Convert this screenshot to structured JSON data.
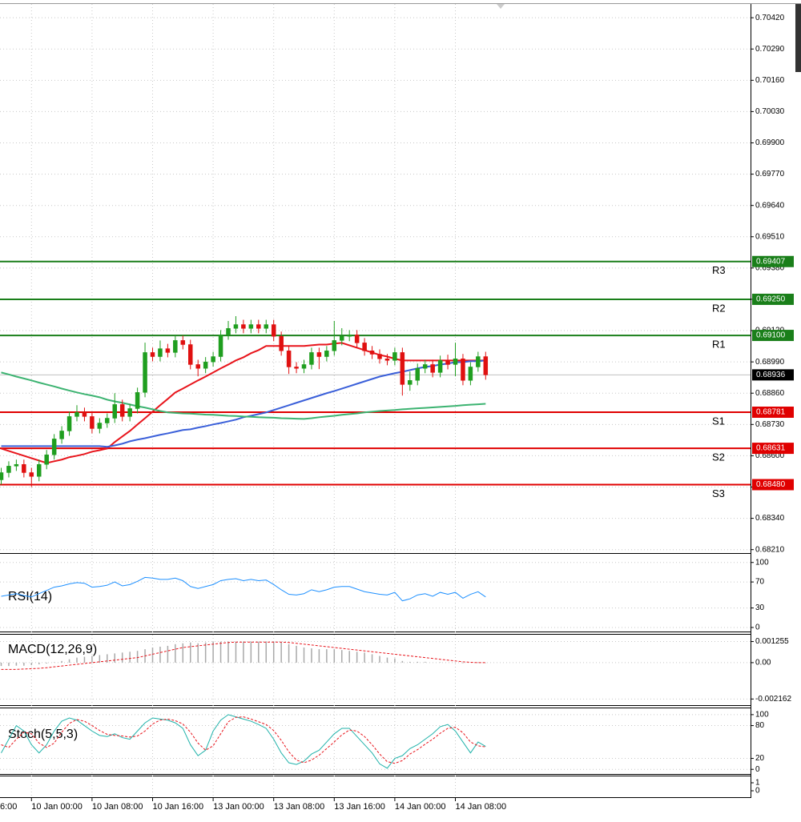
{
  "chart_data": [
    {
      "type": "candlestick",
      "categories": [
        null,
        null,
        null,
        null,
        "10 Jan 00:00",
        null,
        null,
        null,
        null,
        null,
        null,
        null,
        "10 Jan 08:00",
        null,
        null,
        null,
        null,
        null,
        null,
        null,
        "10 Jan 16:00",
        null,
        null,
        null,
        null,
        null,
        null,
        null,
        "13 Jan 00:00",
        null,
        null,
        null,
        null,
        null,
        null,
        null,
        "13 Jan 08:00",
        null,
        null,
        null,
        null,
        null,
        null,
        null,
        "13 Jan 16:00",
        null,
        null,
        null,
        null,
        null,
        null,
        null,
        "14 Jan 00:00",
        null,
        null,
        null,
        null,
        null,
        null,
        null,
        "14 Jan 08:00",
        null,
        null,
        null,
        null
      ],
      "x_partial_label": "6:00",
      "open": [
        0.685,
        0.6853,
        0.68557,
        0.68564,
        0.6853,
        0.68514,
        0.68564,
        0.68604,
        0.6867,
        0.68703,
        0.68763,
        0.6878,
        0.68763,
        0.68713,
        0.68736,
        0.68756,
        0.68813,
        0.68763,
        0.68796,
        0.68863,
        0.69029,
        0.69012,
        0.69045,
        0.69029,
        0.69079,
        0.69062,
        0.68979,
        0.68963,
        0.6899,
        0.69012,
        0.69102,
        0.69129,
        0.69145,
        0.69129,
        0.69145,
        0.69129,
        0.69145,
        0.69096,
        0.69036,
        0.68969,
        0.68963,
        0.68979,
        0.69029,
        0.69012,
        0.69036,
        0.69079,
        0.69096,
        0.69102,
        0.69069,
        0.69036,
        0.69022,
        0.69003,
        0.68996,
        0.69029,
        0.68896,
        0.68913,
        0.68963,
        0.68979,
        0.68946,
        0.68996,
        0.68979,
        0.69003,
        0.68913,
        0.68969,
        0.69012
      ],
      "high": [
        0.6855,
        0.68577,
        0.68584,
        0.68584,
        0.6855,
        0.68584,
        0.68624,
        0.6869,
        0.68723,
        0.68783,
        0.6881,
        0.688,
        0.68783,
        0.68756,
        0.68776,
        0.6886,
        0.68833,
        0.68816,
        0.68883,
        0.6907,
        0.69049,
        0.69079,
        0.69065,
        0.69099,
        0.69099,
        0.69082,
        0.68999,
        0.6901,
        0.69032,
        0.69122,
        0.6916,
        0.6918,
        0.69165,
        0.69165,
        0.69165,
        0.69165,
        0.69165,
        0.69116,
        0.69056,
        0.68989,
        0.68999,
        0.69049,
        0.69049,
        0.69056,
        0.6916,
        0.6913,
        0.69122,
        0.69122,
        0.69089,
        0.69056,
        0.69042,
        0.69023,
        0.69049,
        0.69049,
        0.6895,
        0.68983,
        0.68999,
        0.68999,
        0.69016,
        0.6902,
        0.6907,
        0.69023,
        0.68989,
        0.69032,
        0.69032
      ],
      "low": [
        0.6848,
        0.6851,
        0.68537,
        0.6851,
        0.6847,
        0.68494,
        0.68544,
        0.68584,
        0.6865,
        0.68683,
        0.68743,
        0.68743,
        0.68693,
        0.68693,
        0.68716,
        0.68736,
        0.68743,
        0.68743,
        0.68776,
        0.68843,
        0.68992,
        0.68992,
        0.69009,
        0.69009,
        0.69042,
        0.68959,
        0.6893,
        0.68943,
        0.6897,
        0.68992,
        0.69082,
        0.69109,
        0.69109,
        0.69109,
        0.69109,
        0.69109,
        0.69076,
        0.69016,
        0.6894,
        0.68943,
        0.68943,
        0.68959,
        0.6896,
        0.68992,
        0.69016,
        0.69059,
        0.69076,
        0.69049,
        0.69016,
        0.69002,
        0.68983,
        0.68976,
        0.68976,
        0.6885,
        0.6887,
        0.68893,
        0.68943,
        0.68926,
        0.68926,
        0.68959,
        0.6893,
        0.68893,
        0.68893,
        0.68949,
        0.68916
      ],
      "close": [
        0.6853,
        0.68557,
        0.68564,
        0.6853,
        0.68514,
        0.68564,
        0.68604,
        0.6867,
        0.68703,
        0.68763,
        0.6878,
        0.68763,
        0.68713,
        0.68736,
        0.68756,
        0.68813,
        0.68763,
        0.68796,
        0.68863,
        0.69029,
        0.69012,
        0.69045,
        0.69029,
        0.69079,
        0.69062,
        0.68979,
        0.68963,
        0.6899,
        0.69012,
        0.69102,
        0.69129,
        0.69145,
        0.69129,
        0.69145,
        0.69129,
        0.69145,
        0.69096,
        0.69036,
        0.68969,
        0.68963,
        0.68979,
        0.69029,
        0.69012,
        0.69036,
        0.69079,
        0.69096,
        0.69102,
        0.69069,
        0.69036,
        0.69022,
        0.69003,
        0.68996,
        0.69029,
        0.68896,
        0.68913,
        0.68963,
        0.68979,
        0.68946,
        0.68996,
        0.68979,
        0.69003,
        0.68913,
        0.68969,
        0.69012,
        0.68936
      ],
      "up_color": "#1f9e1f",
      "down_color": "#e01010",
      "overlays": [
        {
          "color": "#e8141b",
          "values": [
            0.6863,
            0.6862,
            0.6861,
            0.686,
            0.6859,
            0.6858,
            0.6857,
            0.68577,
            0.68584,
            0.68594,
            0.686,
            0.68607,
            0.68617,
            0.68623,
            0.6863,
            0.68657,
            0.6868,
            0.68703,
            0.6873,
            0.68756,
            0.68783,
            0.6881,
            0.68836,
            0.68863,
            0.68879,
            0.68896,
            0.68913,
            0.68929,
            0.68946,
            0.68963,
            0.68979,
            0.68996,
            0.69009,
            0.69026,
            0.69039,
            0.69056,
            0.69056,
            0.69056,
            0.69056,
            0.69056,
            0.69056,
            0.69059,
            0.69062,
            0.69062,
            0.69066,
            0.69069,
            0.69059,
            0.69049,
            0.69039,
            0.69029,
            0.69019,
            0.69012,
            0.69003,
            0.68996,
            0.68996,
            0.68996,
            0.68996,
            0.68996,
            0.68996,
            0.68996,
            0.68996,
            0.68996,
            0.68996,
            0.68996,
            0.68996
          ]
        },
        {
          "color": "#3a5fd9",
          "values": [
            0.6864,
            0.6864,
            0.6864,
            0.6864,
            0.6864,
            0.6864,
            0.6864,
            0.6864,
            0.6864,
            0.6864,
            0.6864,
            0.6864,
            0.6864,
            0.6864,
            0.68637,
            0.68643,
            0.6865,
            0.6866,
            0.68667,
            0.68673,
            0.6868,
            0.68687,
            0.68693,
            0.687,
            0.68707,
            0.6871,
            0.68717,
            0.68723,
            0.6873,
            0.68736,
            0.68743,
            0.6875,
            0.6876,
            0.68766,
            0.68773,
            0.6878,
            0.6879,
            0.688,
            0.6881,
            0.6882,
            0.6883,
            0.6884,
            0.6885,
            0.6886,
            0.68869,
            0.68879,
            0.68889,
            0.68899,
            0.68909,
            0.68919,
            0.68929,
            0.68936,
            0.68943,
            0.68949,
            0.68956,
            0.68963,
            0.68969,
            0.68973,
            0.68979,
            0.68983,
            0.68989,
            0.68989,
            0.68993,
            0.68993,
            0.68996
          ]
        },
        {
          "color": "#3cb371",
          "values": [
            0.68946,
            0.68938,
            0.68929,
            0.68921,
            0.68913,
            0.68904,
            0.68896,
            0.68888,
            0.68879,
            0.68871,
            0.68863,
            0.68856,
            0.6885,
            0.68843,
            0.68833,
            0.68826,
            0.6882,
            0.68813,
            0.68806,
            0.688,
            0.68793,
            0.68786,
            0.6878,
            0.68778,
            0.68776,
            0.68775,
            0.68773,
            0.68771,
            0.6877,
            0.68768,
            0.68766,
            0.68765,
            0.68763,
            0.68762,
            0.6876,
            0.68759,
            0.68758,
            0.68756,
            0.68755,
            0.68754,
            0.68753,
            0.68756,
            0.6876,
            0.68763,
            0.68766,
            0.6877,
            0.68773,
            0.68776,
            0.6878,
            0.68783,
            0.68786,
            0.68788,
            0.6879,
            0.68793,
            0.68795,
            0.68797,
            0.68799,
            0.68801,
            0.68803,
            0.68805,
            0.68807,
            0.6881,
            0.68812,
            0.68814,
            0.68816
          ]
        }
      ],
      "levels": [
        {
          "name": "R3",
          "value": 0.69407,
          "value_label": "0.69407",
          "color": "#1a7f1a"
        },
        {
          "name": "R2",
          "value": 0.6925,
          "value_label": "0.69250",
          "color": "#1a7f1a"
        },
        {
          "name": "R1",
          "value": 0.691,
          "value_label": "0.69100",
          "color": "#1a7f1a"
        },
        {
          "name": "S1",
          "value": 0.68781,
          "value_label": "0.68781",
          "color": "#e00000"
        },
        {
          "name": "S2",
          "value": 0.68631,
          "value_label": "0.68631",
          "color": "#e00000"
        },
        {
          "name": "S3",
          "value": 0.6848,
          "value_label": "0.68480",
          "color": "#e00000"
        }
      ],
      "last_price": 0.68936,
      "ylim": [
        0.68199,
        0.70477
      ],
      "yticks": [
        {
          "value": 0.6821,
          "label": "0.68210"
        },
        {
          "value": 0.6834,
          "label": "0.68340"
        },
        {
          "value": 0.6847,
          "label": "0.68470"
        },
        {
          "value": 0.686,
          "label": "0.68600"
        },
        {
          "value": 0.6873,
          "label": "0.68730"
        },
        {
          "value": 0.6886,
          "label": "0.68860"
        },
        {
          "value": 0.6899,
          "label": "0.68990"
        },
        {
          "value": 0.6912,
          "label": "0.69120"
        },
        {
          "value": 0.6925,
          "label": "0.69250"
        },
        {
          "value": 0.6938,
          "label": "0.69380"
        },
        {
          "value": 0.6951,
          "label": "0.69510"
        },
        {
          "value": 0.6964,
          "label": "0.69640"
        },
        {
          "value": 0.6977,
          "label": "0.69770"
        },
        {
          "value": 0.699,
          "label": "0.69900"
        },
        {
          "value": 0.7003,
          "label": "0.70030"
        },
        {
          "value": 0.7016,
          "label": "0.70160"
        },
        {
          "value": 0.7029,
          "label": "0.70290"
        },
        {
          "value": 0.7042,
          "label": "0.70420"
        }
      ],
      "grid": true
    },
    {
      "type": "line",
      "title": "RSI(14)",
      "series": [
        {
          "color": "#1e90ff",
          "values": [
            48,
            50,
            52,
            49,
            47,
            52,
            57,
            62,
            64,
            67,
            69,
            68,
            62,
            63,
            65,
            70,
            64,
            66,
            71,
            77,
            76,
            74,
            74,
            76,
            72,
            63,
            60,
            63,
            66,
            72,
            74,
            75,
            72,
            74,
            72,
            73,
            66,
            58,
            51,
            50,
            52,
            58,
            55,
            58,
            62,
            63,
            63,
            59,
            55,
            53,
            51,
            50,
            54,
            41,
            44,
            50,
            52,
            48,
            54,
            51,
            54,
            45,
            51,
            55,
            47
          ]
        }
      ],
      "ylim": [
        -5,
        112
      ],
      "yticks": [
        100,
        70,
        30,
        0
      ],
      "grid": true
    },
    {
      "type": "macd",
      "title": "MACD(12,26,9)",
      "histogram": [
        -0.0002,
        -0.0002,
        -0.00018,
        -0.00018,
        -0.00015,
        -0.0001,
        -5e-05,
        2e-05,
        0.0001,
        0.0002,
        0.0003,
        0.00035,
        0.0004,
        0.00045,
        0.0005,
        0.00055,
        0.0006,
        0.00065,
        0.0007,
        0.0008,
        0.0009,
        0.00095,
        0.001,
        0.0011,
        0.00115,
        0.0012,
        0.00115,
        0.0012,
        0.00125,
        0.00125,
        0.00125,
        0.00125,
        0.00125,
        0.00125,
        0.00125,
        0.00125,
        0.00125,
        0.0012,
        0.0011,
        0.001,
        0.0009,
        0.00085,
        0.0008,
        0.0008,
        0.0008,
        0.00075,
        0.0007,
        0.00065,
        0.0006,
        0.0005,
        0.0004,
        0.0003,
        0.00025,
        0.0001,
        5e-05,
        5e-05,
        5e-05,
        0,
        2e-05,
        0,
        2e-05,
        -3e-05,
        0,
        2e-05,
        -2e-05
      ],
      "histogram_color": "#a9a9a9",
      "signal": [
        -0.0004,
        -0.0004,
        -0.0004,
        -0.00038,
        -0.00036,
        -0.00034,
        -0.0003,
        -0.00025,
        -0.0002,
        -0.00015,
        -0.0001,
        -5e-05,
        0,
        5e-05,
        0.0001,
        0.00015,
        0.0002,
        0.00025,
        0.0003,
        0.0004,
        0.0005,
        0.0006,
        0.0007,
        0.0008,
        0.0009,
        0.00095,
        0.001,
        0.00105,
        0.0011,
        0.00115,
        0.0012,
        0.00122,
        0.00122,
        0.00122,
        0.00122,
        0.00122,
        0.00122,
        0.00122,
        0.0012,
        0.00115,
        0.0011,
        0.00105,
        0.001,
        0.00095,
        0.0009,
        0.00085,
        0.0008,
        0.00075,
        0.0007,
        0.00065,
        0.0006,
        0.00055,
        0.0005,
        0.00045,
        0.0004,
        0.00035,
        0.0003,
        0.00025,
        0.0002,
        0.00015,
        0.0001,
        5e-05,
        2e-05,
        0,
        0
      ],
      "signal_color": "#e8141b",
      "ylim": [
        -0.00248,
        0.00171
      ],
      "yticks": [
        0.001255,
        {
          "value": 0,
          "label": "0.00"
        },
        -0.002162
      ],
      "grid": true
    },
    {
      "type": "line",
      "title": "Stoch(5,5,3)",
      "series": [
        {
          "color": "#20b2aa",
          "values": [
            30,
            55,
            80,
            70,
            45,
            30,
            45,
            70,
            88,
            94,
            90,
            80,
            70,
            62,
            60,
            65,
            58,
            55,
            70,
            85,
            94,
            92,
            90,
            85,
            75,
            45,
            25,
            35,
            70,
            90,
            100,
            96,
            92,
            88,
            82,
            75,
            55,
            30,
            12,
            9,
            15,
            28,
            35,
            50,
            65,
            75,
            75,
            60,
            45,
            30,
            10,
            2,
            20,
            25,
            38,
            45,
            55,
            65,
            78,
            82,
            70,
            50,
            30,
            50,
            42
          ]
        },
        {
          "color": "#e8141b",
          "dash": true,
          "values": [
            45,
            40,
            55,
            68,
            65,
            48,
            40,
            48,
            68,
            84,
            91,
            88,
            80,
            71,
            64,
            62,
            61,
            59,
            61,
            70,
            83,
            90,
            92,
            89,
            83,
            68,
            48,
            35,
            43,
            65,
            87,
            95,
            96,
            92,
            87,
            82,
            71,
            53,
            32,
            17,
            12,
            17,
            26,
            38,
            50,
            63,
            72,
            70,
            60,
            45,
            28,
            14,
            11,
            16,
            28,
            36,
            46,
            55,
            66,
            75,
            77,
            67,
            50,
            43,
            41
          ]
        }
      ],
      "ylim": [
        -7,
        113
      ],
      "yticks": [
        100,
        80,
        20,
        0
      ],
      "grid": true
    },
    {
      "type": "empty",
      "ylim": [
        -0.8,
        1.9
      ],
      "yticks": [
        1,
        0
      ],
      "grid": false
    }
  ]
}
